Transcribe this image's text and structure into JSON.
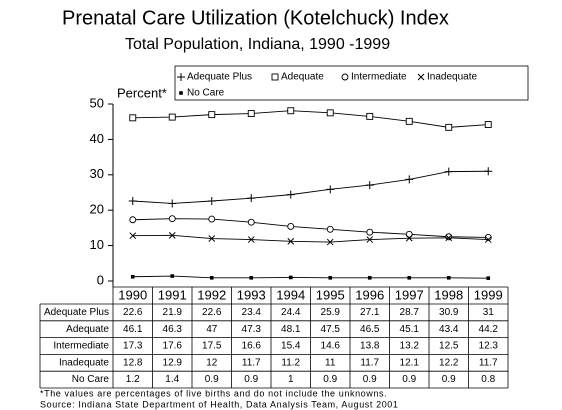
{
  "chart_data": {
    "type": "line",
    "title": "Prenatal Care Utilization (Kotelchuck) Index",
    "subtitle": "Total Population, Indiana, 1990 -1999",
    "y_label": "Percent*",
    "categories": [
      "1990",
      "1991",
      "1992",
      "1993",
      "1994",
      "1995",
      "1996",
      "1997",
      "1998",
      "1999"
    ],
    "series": [
      {
        "name": "Adequate Plus",
        "color": "#000000",
        "marker": "plus",
        "values": [
          22.6,
          21.9,
          22.6,
          23.4,
          24.4,
          25.9,
          27.1,
          28.7,
          30.9,
          31
        ]
      },
      {
        "name": "Adequate",
        "color": "#000000",
        "marker": "square",
        "values": [
          46.1,
          46.3,
          47,
          47.3,
          48.1,
          47.5,
          46.5,
          45.1,
          43.4,
          44.2
        ]
      },
      {
        "name": "Intermediate",
        "color": "#000000",
        "marker": "circle",
        "values": [
          17.3,
          17.6,
          17.5,
          16.6,
          15.4,
          14.6,
          13.8,
          13.2,
          12.5,
          12.3
        ]
      },
      {
        "name": "Inadequate",
        "color": "#000000",
        "marker": "x",
        "values": [
          12.8,
          12.9,
          12,
          11.7,
          11.2,
          11,
          11.7,
          12.1,
          12.2,
          11.7
        ]
      },
      {
        "name": "No Care",
        "color": "#000000",
        "marker": "dot",
        "values": [
          1.2,
          1.4,
          0.9,
          0.9,
          1,
          0.9,
          0.9,
          0.9,
          0.9,
          0.8
        ]
      }
    ],
    "ylim": [
      0,
      50
    ],
    "yticks": [
      0,
      10,
      20,
      30,
      40,
      50
    ],
    "grid": false,
    "notes": [
      "*The values are percentages of live births and do not include the unknowns.",
      "Source:  Indiana State Department of Health, Data Analysis Team, August 2001"
    ]
  }
}
